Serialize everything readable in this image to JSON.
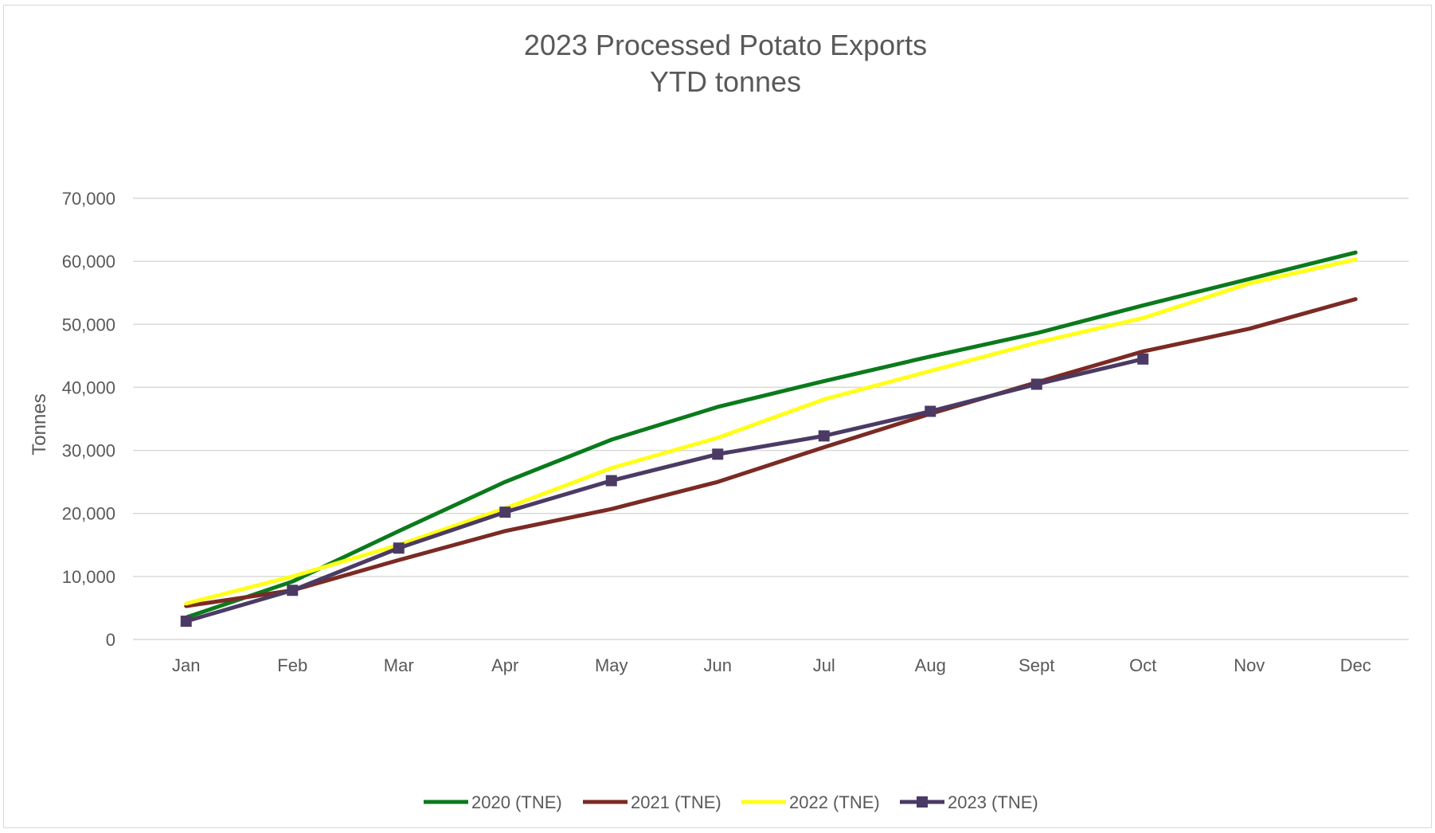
{
  "chart_data": {
    "type": "line",
    "title": "2023 Processed Potato Exports",
    "subtitle": "YTD tonnes",
    "xlabel": "",
    "ylabel": "Tonnes",
    "ylim": [
      0,
      70000
    ],
    "yticks": [
      0,
      10000,
      20000,
      30000,
      40000,
      50000,
      60000,
      70000
    ],
    "ytick_labels": [
      "0",
      "10,000",
      "20,000",
      "30,000",
      "40,000",
      "50,000",
      "60,000",
      "70,000"
    ],
    "grid": true,
    "legend_position": "bottom",
    "categories": [
      "Jan",
      "Feb",
      "Mar",
      "Apr",
      "May",
      "Jun",
      "Jul",
      "Aug",
      "Sept",
      "Oct",
      "Nov",
      "Dec"
    ],
    "series": [
      {
        "name": "2020 (TNE)",
        "color": "#0b7a1c",
        "marker": "none",
        "values": [
          3500,
          9200,
          17200,
          25000,
          31700,
          36900,
          41000,
          44900,
          48600,
          53000,
          57200,
          61400
        ]
      },
      {
        "name": "2021 (TNE)",
        "color": "#7b2a24",
        "marker": "none",
        "values": [
          5300,
          7800,
          12600,
          17200,
          20700,
          25000,
          30500,
          35800,
          40800,
          45700,
          49300,
          54000
        ]
      },
      {
        "name": "2022 (TNE)",
        "color": "#ffff1a",
        "marker": "none",
        "values": [
          5700,
          10000,
          15000,
          20800,
          27200,
          32000,
          38100,
          42600,
          47100,
          51000,
          56500,
          60300
        ]
      },
      {
        "name": "2023 (TNE)",
        "color": "#4a3a64",
        "marker": "square",
        "values": [
          2900,
          7800,
          14500,
          20200,
          25200,
          29400,
          32300,
          36200,
          40500,
          44500,
          null,
          null
        ]
      }
    ]
  }
}
